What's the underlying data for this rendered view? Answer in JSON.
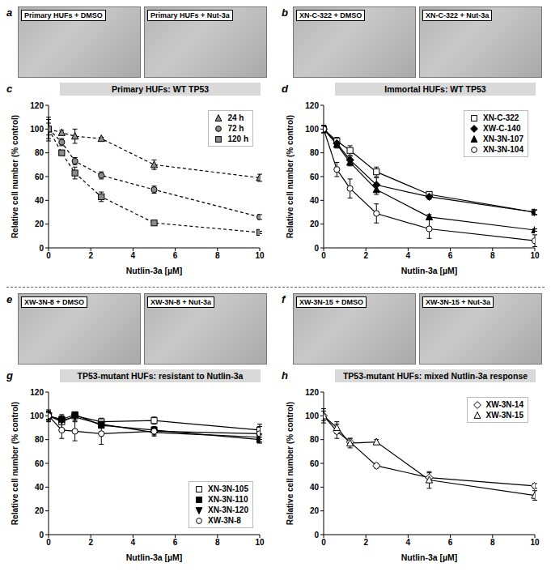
{
  "photo_panels": [
    {
      "panel": "a",
      "images": [
        "Primary HUFs + DMSO",
        "Primary HUFs + Nut-3a"
      ]
    },
    {
      "panel": "b",
      "images": [
        "XN-C-322 + DMSO",
        "XN-C-322 + Nut-3a"
      ]
    },
    {
      "panel": "e",
      "images": [
        "XW-3N-8 + DMSO",
        "XW-3N-8 + Nut-3a"
      ]
    },
    {
      "panel": "f",
      "images": [
        "XW-3N-15 + DMSO",
        "XW-3N-15 + Nut-3a"
      ]
    }
  ],
  "chart_data": [
    {
      "type": "line",
      "panel": "c",
      "title": "Primary HUFs: WT TP53",
      "x_label": "Nutlin-3a [µM]",
      "y_label": "Relative cell number (% control)",
      "x": [
        0,
        0.625,
        1.25,
        2.5,
        5,
        10
      ],
      "xlim": [
        0,
        10
      ],
      "xticks": [
        0,
        2,
        4,
        6,
        8,
        10
      ],
      "ylim": [
        0,
        120
      ],
      "yticks": [
        0,
        20,
        40,
        60,
        80,
        100,
        120
      ],
      "legend": "upper right",
      "series": [
        {
          "name": "24 h",
          "color": "#8c8c8c",
          "marker": "triangle",
          "line_style": "dashed",
          "values": [
            100,
            97,
            94,
            92,
            70,
            59
          ],
          "errors": [
            10,
            2,
            6,
            1,
            4,
            3
          ]
        },
        {
          "name": "72 h",
          "color": "#8c8c8c",
          "marker": "circle",
          "line_style": "dashed",
          "values": [
            100,
            89,
            73,
            61,
            49,
            26
          ],
          "errors": [
            8,
            3,
            3,
            3,
            3,
            2
          ]
        },
        {
          "name": "120 h",
          "color": "#8c8c8c",
          "marker": "square",
          "line_style": "dashed",
          "values": [
            100,
            80,
            63,
            43,
            21,
            13
          ],
          "errors": [
            5,
            2,
            5,
            4,
            1,
            1
          ]
        }
      ]
    },
    {
      "type": "line",
      "panel": "d",
      "title": "Immortal HUFs: WT TP53",
      "x_label": "Nutlin-3a [µM]",
      "y_label": "Relative cell number (% control)",
      "x": [
        0,
        0.625,
        1.25,
        2.5,
        5,
        10
      ],
      "xlim": [
        0,
        10
      ],
      "xticks": [
        0,
        2,
        4,
        6,
        8,
        10
      ],
      "ylim": [
        0,
        120
      ],
      "yticks": [
        0,
        20,
        40,
        60,
        80,
        100,
        120
      ],
      "legend": "upper right",
      "series": [
        {
          "name": "XN-C-322",
          "color": "#ffffff",
          "marker": "square",
          "line_style": "solid",
          "values": [
            100,
            90,
            82,
            64,
            45,
            30
          ],
          "errors": [
            3,
            3,
            4,
            4,
            2,
            2
          ]
        },
        {
          "name": "XW-C-140",
          "color": "#000000",
          "marker": "diamond",
          "line_style": "solid",
          "values": [
            100,
            88,
            74,
            53,
            43,
            30
          ],
          "errors": [
            3,
            3,
            3,
            6,
            2,
            2
          ]
        },
        {
          "name": "XN-3N-107",
          "color": "#000000",
          "marker": "triangle",
          "line_style": "solid",
          "values": [
            100,
            87,
            72,
            49,
            26,
            15
          ],
          "errors": [
            3,
            3,
            3,
            4,
            2,
            1
          ]
        },
        {
          "name": "XN-3N-104",
          "color": "#ffffff",
          "marker": "circle",
          "line_style": "solid",
          "values": [
            100,
            66,
            50,
            29,
            16,
            6
          ],
          "errors": [
            3,
            6,
            8,
            8,
            8,
            5
          ]
        }
      ]
    },
    {
      "type": "line",
      "panel": "g",
      "title": "TP53-mutant HUFs: resistant to Nutlin-3a",
      "x_label": "Nutlin-3a [µM]",
      "y_label": "Relative cell number (% control)",
      "x": [
        0,
        0.625,
        1.25,
        2.5,
        5,
        10
      ],
      "xlim": [
        0,
        10
      ],
      "xticks": [
        0,
        2,
        4,
        6,
        8,
        10
      ],
      "ylim": [
        0,
        120
      ],
      "yticks": [
        0,
        20,
        40,
        60,
        80,
        100,
        120
      ],
      "legend": "lower right",
      "series": [
        {
          "name": "XN-3N-105",
          "color": "#ffffff",
          "marker": "square",
          "line_style": "solid",
          "values": [
            100,
            95,
            100,
            95,
            96,
            88
          ],
          "errors": [
            4,
            6,
            2,
            3,
            3,
            3
          ]
        },
        {
          "name": "XN-3N-110",
          "color": "#000000",
          "marker": "square",
          "line_style": "solid",
          "values": [
            100,
            97,
            101,
            92,
            88,
            80
          ],
          "errors": [
            3,
            3,
            2,
            2,
            2,
            2
          ]
        },
        {
          "name": "XN-3N-120",
          "color": "#000000",
          "marker": "triangle_down",
          "line_style": "solid",
          "values": [
            100,
            96,
            99,
            93,
            86,
            82
          ],
          "errors": [
            3,
            3,
            3,
            2,
            2,
            2
          ]
        },
        {
          "name": "XW-3N-8",
          "color": "#ffffff",
          "marker": "circle",
          "line_style": "solid",
          "values": [
            100,
            88,
            87,
            85,
            87,
            85
          ],
          "errors": [
            5,
            7,
            8,
            9,
            4,
            8
          ]
        }
      ]
    },
    {
      "type": "line",
      "panel": "h",
      "title": "TP53-mutant HUFs: mixed Nutlin-3a response",
      "x_label": "Nutlin-3a [µM]",
      "y_label": "Relative cell number (% control)",
      "x": [
        0,
        0.625,
        1.25,
        2.5,
        5,
        10
      ],
      "xlim": [
        0,
        10
      ],
      "xticks": [
        0,
        2,
        4,
        6,
        8,
        10
      ],
      "ylim": [
        0,
        120
      ],
      "yticks": [
        0,
        20,
        40,
        60,
        80,
        100,
        120
      ],
      "legend": "upper right",
      "series": [
        {
          "name": "XW-3N-14",
          "color": "#ffffff",
          "marker": "diamond",
          "line_style": "solid",
          "values": [
            100,
            87,
            78,
            58,
            48,
            41
          ],
          "errors": [
            6,
            6,
            3,
            2,
            4,
            2
          ]
        },
        {
          "name": "XW-3N-15",
          "color": "#ffffff",
          "marker": "triangle",
          "line_style": "solid",
          "values": [
            100,
            90,
            77,
            78,
            46,
            33
          ],
          "errors": [
            4,
            5,
            4,
            2,
            7,
            4
          ]
        }
      ]
    }
  ]
}
